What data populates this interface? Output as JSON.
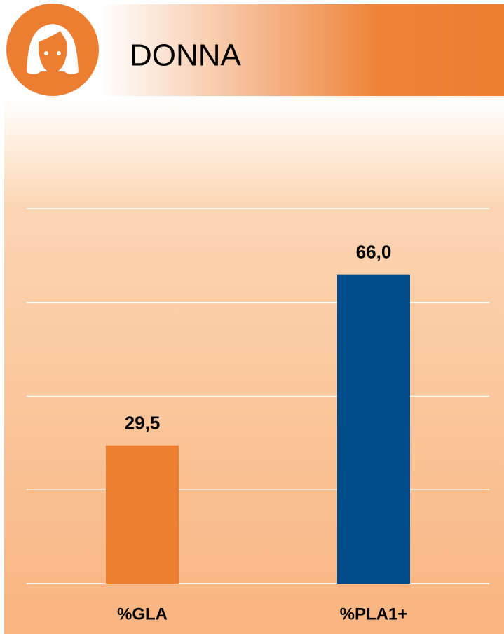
{
  "chart_data": {
    "type": "bar",
    "title": "DONNA",
    "categories": [
      "%GLA",
      "%PLA1+"
    ],
    "values": [
      29.5,
      66.0
    ],
    "value_labels": [
      "29,5",
      "66,0"
    ],
    "colors": [
      "#ed7d31",
      "#004a8a"
    ],
    "ylim": [
      0,
      80
    ],
    "yticks": [
      0,
      20,
      40,
      60,
      80
    ],
    "grid": true
  }
}
